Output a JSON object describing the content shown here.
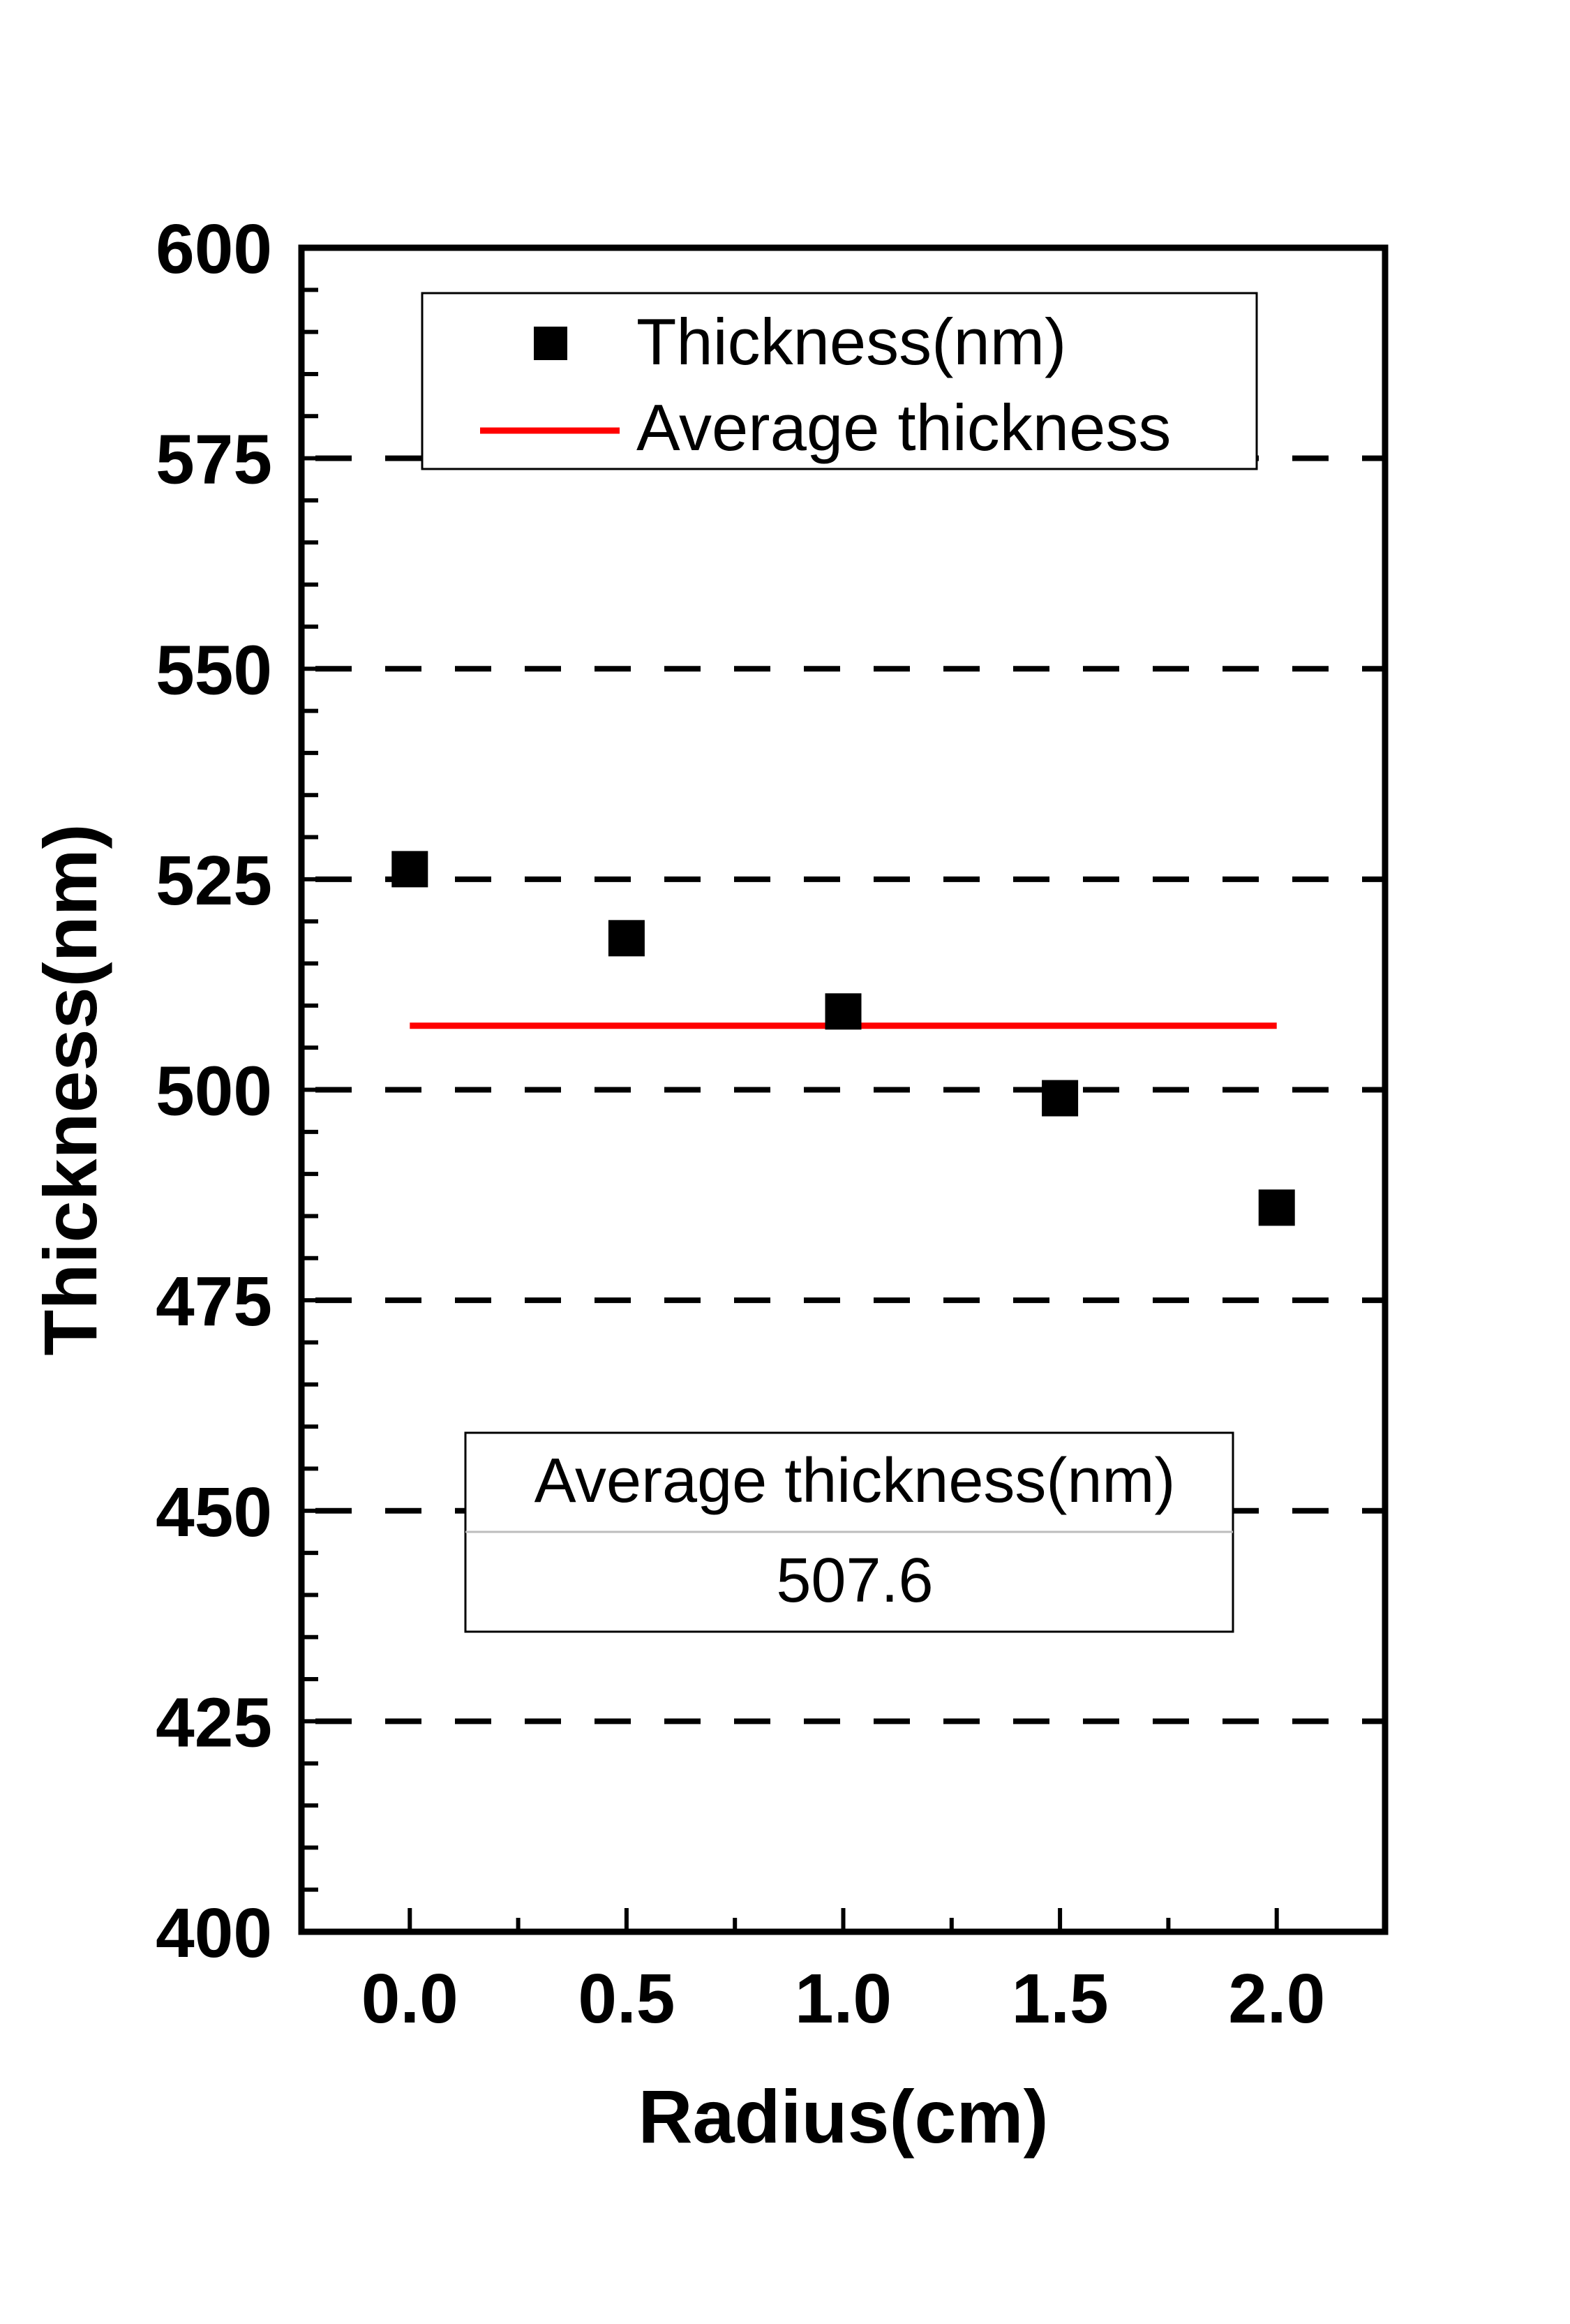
{
  "chart_data": {
    "type": "scatter",
    "xlabel": "Radius(cm)",
    "ylabel": "Thickness(nm)",
    "xlim": [
      -0.25,
      2.25
    ],
    "ylim": [
      400,
      600
    ],
    "x_ticks": [
      "0.0",
      "0.5",
      "1.0",
      "1.5",
      "2.0"
    ],
    "y_ticks": [
      "400",
      "425",
      "450",
      "475",
      "500",
      "525",
      "550",
      "575",
      "600"
    ],
    "grid": "horizontal dashed",
    "legend_position": "top",
    "series": [
      {
        "name": "Thickness(nm)",
        "type": "scatter",
        "marker": "square",
        "color": "#000000",
        "x": [
          0.0,
          0.5,
          1.0,
          1.5,
          2.0
        ],
        "y": [
          526.2,
          518.0,
          509.3,
          499.0,
          486.0
        ]
      },
      {
        "name": "Average thickness",
        "type": "line",
        "color": "#ff0000",
        "x": [
          0.0,
          2.0
        ],
        "y": [
          507.6,
          507.6
        ]
      }
    ],
    "table": {
      "header": "Average thickness(nm)",
      "value": "507.6"
    }
  }
}
